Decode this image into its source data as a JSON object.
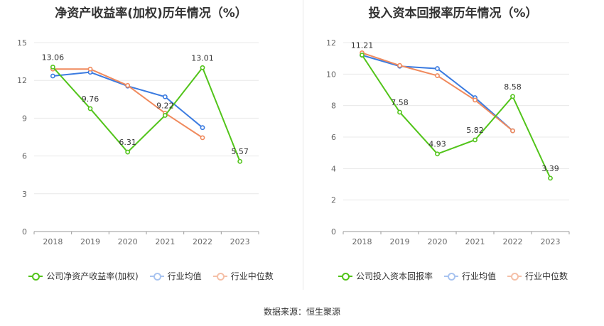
{
  "source": "数据来源：恒生聚源",
  "chart_data": [
    {
      "type": "line",
      "title": "净资产收益率(加权)历年情况（%）",
      "categories": [
        "2018",
        "2019",
        "2020",
        "2021",
        "2022",
        "2023"
      ],
      "ylim": [
        0,
        15
      ],
      "yticks": [
        0,
        3,
        6,
        9,
        12,
        15
      ],
      "grid": true,
      "legend_position": "bottom",
      "series": [
        {
          "name": "公司净资产收益率(加权)",
          "color": "#52c41a",
          "values": [
            13.06,
            9.76,
            6.31,
            9.22,
            13.01,
            5.57
          ],
          "labels": [
            "13.06",
            "9.76",
            "6.31",
            "9.22",
            "13.01",
            "5.57"
          ]
        },
        {
          "name": "行业均值",
          "color": "#3b7be0",
          "values": [
            12.35,
            12.65,
            11.55,
            10.7,
            8.25,
            null
          ]
        },
        {
          "name": "行业中位数",
          "color": "#f08a5d",
          "values": [
            12.9,
            12.9,
            11.6,
            9.4,
            7.45,
            null
          ]
        }
      ]
    },
    {
      "type": "line",
      "title": "投入资本回报率历年情况（%）",
      "categories": [
        "2018",
        "2019",
        "2020",
        "2021",
        "2022",
        "2023"
      ],
      "ylim": [
        0,
        12
      ],
      "yticks": [
        0,
        2,
        4,
        6,
        8,
        10,
        12
      ],
      "grid": true,
      "legend_position": "bottom",
      "series": [
        {
          "name": "公司投入资本回报率",
          "color": "#52c41a",
          "values": [
            11.21,
            7.58,
            4.93,
            5.82,
            8.58,
            3.39
          ],
          "labels": [
            "11.21",
            "7.58",
            "4.93",
            "5.82",
            "8.58",
            "3.39"
          ]
        },
        {
          "name": "行业均值",
          "color": "#3b7be0",
          "values": [
            11.2,
            10.5,
            10.35,
            8.5,
            6.4,
            null
          ]
        },
        {
          "name": "行业中位数",
          "color": "#f08a5d",
          "values": [
            11.35,
            10.55,
            9.9,
            8.35,
            6.4,
            null
          ]
        }
      ]
    }
  ]
}
